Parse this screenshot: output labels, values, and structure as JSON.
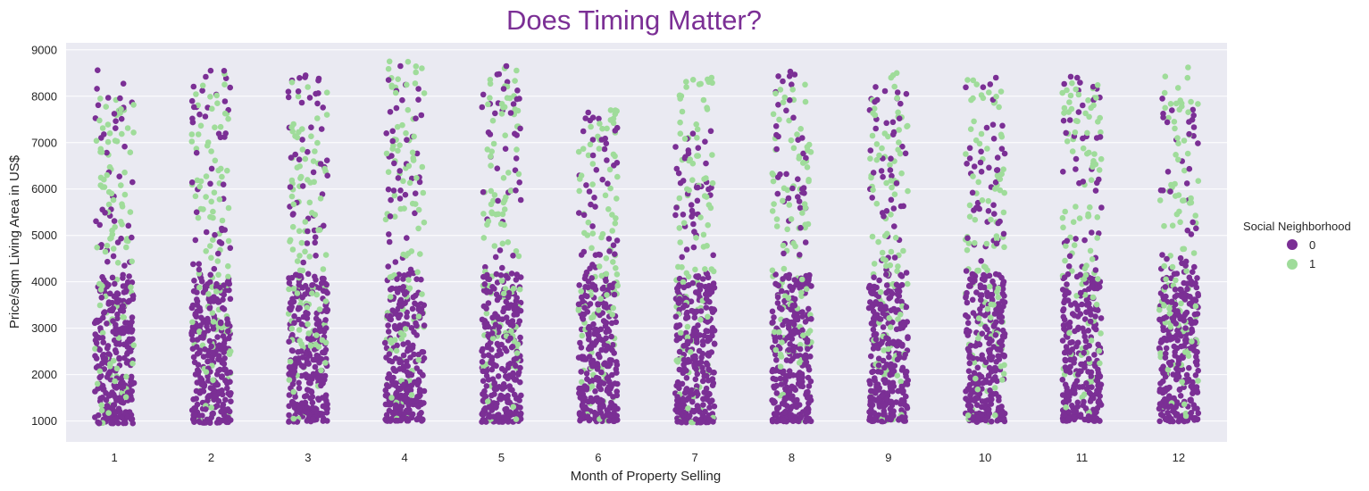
{
  "chart_data": {
    "type": "scatter",
    "subtype": "strip",
    "title": "Does Timing Matter?",
    "xlabel": "Month of Property Selling",
    "ylabel": "Price/sqm Living Area in US$",
    "categories": [
      "1",
      "2",
      "3",
      "4",
      "5",
      "6",
      "7",
      "8",
      "9",
      "10",
      "11",
      "12"
    ],
    "yticks": [
      "1000",
      "2000",
      "3000",
      "4000",
      "5000",
      "6000",
      "7000",
      "8000",
      "9000"
    ],
    "ylim": [
      550,
      9150
    ],
    "grid": true,
    "legend": {
      "title": "Social Neighborhood",
      "placement": "right",
      "entries": [
        "0",
        "1"
      ]
    },
    "series": [
      {
        "name": "0",
        "color": "#7b2f95"
      },
      {
        "name": "1",
        "color": "#9fdc9a"
      }
    ],
    "distributions": [
      {
        "month": "1",
        "min": 950,
        "max_0": 8560,
        "max_1": 7950
      },
      {
        "month": "2",
        "min": 960,
        "max_0": 8550,
        "max_1": 8480
      },
      {
        "month": "3",
        "min": 980,
        "max_0": 8450,
        "max_1": 8300
      },
      {
        "month": "4",
        "min": 1000,
        "max_0": 8650,
        "max_1": 8750
      },
      {
        "month": "5",
        "min": 980,
        "max_0": 8650,
        "max_1": 8600
      },
      {
        "month": "6",
        "min": 990,
        "max_0": 7650,
        "max_1": 7700
      },
      {
        "month": "7",
        "min": 970,
        "max_0": 7250,
        "max_1": 8400
      },
      {
        "month": "8",
        "min": 990,
        "max_0": 8530,
        "max_1": 8250
      },
      {
        "month": "9",
        "min": 990,
        "max_0": 8200,
        "max_1": 8500
      },
      {
        "month": "10",
        "min": 980,
        "max_0": 8400,
        "max_1": 8350
      },
      {
        "month": "11",
        "min": 1000,
        "max_0": 8420,
        "max_1": 8280
      },
      {
        "month": "12",
        "min": 990,
        "max_0": 7950,
        "max_1": 8620
      }
    ]
  }
}
